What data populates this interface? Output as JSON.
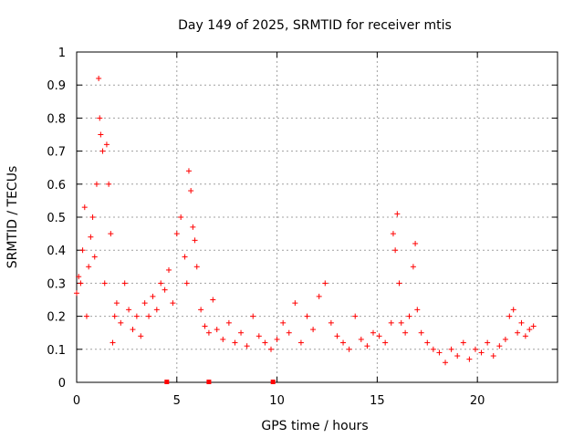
{
  "chart_data": {
    "type": "scatter",
    "title": "Day 149 of 2025, SRMTID for receiver mtis",
    "xlabel": "GPS time / hours",
    "ylabel": "SRMTID / TECUs",
    "xlim": [
      0,
      24
    ],
    "ylim": [
      0,
      1
    ],
    "xticks": [
      0,
      5,
      10,
      15,
      20
    ],
    "xtick_labels": [
      "0",
      "5",
      "10",
      "15",
      "20"
    ],
    "yticks": [
      0,
      0.1,
      0.2,
      0.3,
      0.4,
      0.5,
      0.6,
      0.7,
      0.8,
      0.9,
      1
    ],
    "ytick_labels": [
      "0",
      "0.1",
      "0.2",
      "0.3",
      "0.4",
      "0.5",
      "0.6",
      "0.7",
      "0.8",
      "0.9",
      "1"
    ],
    "grid": true,
    "marker": "+",
    "color": "#ff0000",
    "data_gap_markers_x": [
      4.5,
      6.6,
      9.8
    ],
    "series": [
      {
        "name": "SRMTID",
        "x": [
          0.0,
          0.1,
          0.2,
          0.3,
          0.4,
          0.5,
          0.6,
          0.7,
          0.8,
          0.9,
          1.0,
          1.1,
          1.15,
          1.2,
          1.3,
          1.4,
          1.5,
          1.6,
          1.7,
          1.8,
          1.9,
          2.0,
          2.2,
          2.4,
          2.6,
          2.8,
          3.0,
          3.2,
          3.4,
          3.6,
          3.8,
          4.0,
          4.2,
          4.4,
          4.6,
          4.8,
          5.0,
          5.2,
          5.4,
          5.5,
          5.6,
          5.7,
          5.8,
          5.9,
          6.0,
          6.2,
          6.4,
          6.6,
          6.8,
          7.0,
          7.3,
          7.6,
          7.9,
          8.2,
          8.5,
          8.8,
          9.1,
          9.4,
          9.7,
          10.0,
          10.3,
          10.6,
          10.9,
          11.2,
          11.5,
          11.8,
          12.1,
          12.4,
          12.7,
          13.0,
          13.3,
          13.6,
          13.9,
          14.2,
          14.5,
          14.8,
          15.1,
          15.4,
          15.7,
          15.8,
          15.9,
          16.0,
          16.1,
          16.2,
          16.4,
          16.6,
          16.8,
          16.9,
          17.0,
          17.2,
          17.5,
          17.8,
          18.1,
          18.4,
          18.7,
          19.0,
          19.3,
          19.6,
          19.9,
          20.2,
          20.5,
          20.8,
          21.1,
          21.4,
          21.6,
          21.8,
          22.0,
          22.2,
          22.4,
          22.6,
          22.8
        ],
        "y": [
          0.27,
          0.32,
          0.3,
          0.4,
          0.53,
          0.2,
          0.35,
          0.44,
          0.5,
          0.38,
          0.6,
          0.92,
          0.8,
          0.75,
          0.7,
          0.3,
          0.72,
          0.6,
          0.45,
          0.12,
          0.2,
          0.24,
          0.18,
          0.3,
          0.22,
          0.16,
          0.2,
          0.14,
          0.24,
          0.2,
          0.26,
          0.22,
          0.3,
          0.28,
          0.34,
          0.24,
          0.45,
          0.5,
          0.38,
          0.3,
          0.64,
          0.58,
          0.47,
          0.43,
          0.35,
          0.22,
          0.17,
          0.15,
          0.25,
          0.16,
          0.13,
          0.18,
          0.12,
          0.15,
          0.11,
          0.2,
          0.14,
          0.12,
          0.1,
          0.13,
          0.18,
          0.15,
          0.24,
          0.12,
          0.2,
          0.16,
          0.26,
          0.3,
          0.18,
          0.14,
          0.12,
          0.1,
          0.2,
          0.13,
          0.11,
          0.15,
          0.14,
          0.12,
          0.18,
          0.45,
          0.4,
          0.51,
          0.3,
          0.18,
          0.15,
          0.2,
          0.35,
          0.42,
          0.22,
          0.15,
          0.12,
          0.1,
          0.09,
          0.06,
          0.1,
          0.08,
          0.12,
          0.07,
          0.1,
          0.09,
          0.12,
          0.08,
          0.11,
          0.13,
          0.2,
          0.22,
          0.15,
          0.18,
          0.14,
          0.16,
          0.17
        ]
      }
    ]
  }
}
